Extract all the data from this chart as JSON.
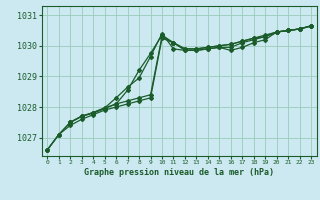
{
  "title": "Graphe pression niveau de la mer (hPa)",
  "bg_color": "#cce8f0",
  "grid_color": "#99ccbb",
  "line_color": "#1a5c2a",
  "xlim": [
    -0.5,
    23.5
  ],
  "ylim": [
    1026.4,
    1031.3
  ],
  "yticks": [
    1027,
    1028,
    1029,
    1030,
    1031
  ],
  "xticks": [
    0,
    1,
    2,
    3,
    4,
    5,
    6,
    7,
    8,
    9,
    10,
    11,
    12,
    13,
    14,
    15,
    16,
    17,
    18,
    19,
    20,
    21,
    22,
    23
  ],
  "series": [
    {
      "x": [
        0,
        1,
        2,
        3,
        4,
        5,
        6,
        7,
        8,
        9,
        10,
        11,
        12,
        13,
        14,
        15,
        16,
        17,
        18,
        19,
        20,
        21,
        22,
        23
      ],
      "y": [
        1026.6,
        1027.1,
        1027.4,
        1027.6,
        1027.75,
        1027.9,
        1028.0,
        1028.1,
        1028.2,
        1028.3,
        1030.25,
        1030.1,
        1029.85,
        1029.85,
        1029.9,
        1029.95,
        1029.85,
        1029.95,
        1030.1,
        1030.2,
        1030.45,
        1030.5,
        1030.55,
        1030.65
      ],
      "marker": "D",
      "markersize": 2,
      "linewidth": 0.9
    },
    {
      "x": [
        0,
        1,
        2,
        3,
        4,
        5,
        6,
        7,
        8,
        9,
        10,
        11,
        12,
        13,
        14,
        15,
        16,
        17,
        18,
        19,
        20,
        21,
        22,
        23
      ],
      "y": [
        1026.6,
        1027.1,
        1027.5,
        1027.7,
        1027.8,
        1027.95,
        1028.1,
        1028.55,
        1029.2,
        1029.75,
        1030.35,
        1030.1,
        1029.9,
        1029.9,
        1029.95,
        1030.0,
        1030.05,
        1030.15,
        1030.25,
        1030.3,
        1030.45,
        1030.5,
        1030.55,
        1030.65
      ],
      "marker": "D",
      "markersize": 2,
      "linewidth": 0.9
    },
    {
      "x": [
        0,
        1,
        2,
        3,
        4,
        5,
        6,
        7,
        8,
        9,
        10,
        11,
        12,
        13,
        14,
        15,
        16,
        17,
        18,
        19,
        20,
        21,
        22,
        23
      ],
      "y": [
        1026.6,
        1027.1,
        1027.5,
        1027.7,
        1027.82,
        1027.97,
        1028.1,
        1028.2,
        1028.3,
        1028.4,
        1030.3,
        1030.1,
        1029.9,
        1029.9,
        1029.95,
        1030.0,
        1030.05,
        1030.15,
        1030.25,
        1030.35,
        1030.45,
        1030.5,
        1030.55,
        1030.65
      ],
      "marker": "D",
      "markersize": 2,
      "linewidth": 0.9
    },
    {
      "x": [
        2,
        3,
        4,
        5,
        6,
        7,
        8,
        9,
        10,
        11,
        12,
        13,
        14,
        15,
        16,
        17,
        18,
        19,
        20,
        21,
        22,
        23
      ],
      "y": [
        1027.5,
        1027.7,
        1027.82,
        1027.97,
        1028.3,
        1028.65,
        1028.95,
        1029.65,
        1030.4,
        1029.9,
        1029.85,
        1029.85,
        1029.9,
        1029.95,
        1029.95,
        1030.1,
        1030.2,
        1030.3,
        1030.45,
        1030.5,
        1030.55,
        1030.65
      ],
      "marker": "D",
      "markersize": 2,
      "linewidth": 0.9
    }
  ],
  "ylabel_fontsize": 6,
  "xlabel_fontsize": 5.5,
  "title_fontsize": 6
}
